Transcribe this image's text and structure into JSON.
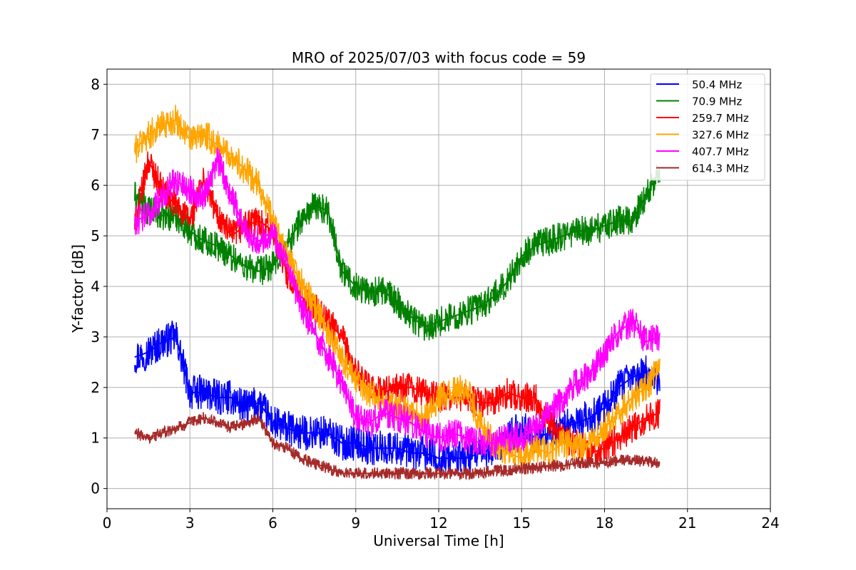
{
  "chart_data": {
    "type": "line",
    "title": "MRO of 2025/07/03 with focus code = 59",
    "xlabel": "Universal Time [h]",
    "ylabel": "Y-factor [dB]",
    "xlim": [
      0,
      24
    ],
    "ylim": [
      -0.4,
      8.3
    ],
    "xticks": [
      0,
      3,
      6,
      9,
      12,
      15,
      18,
      21,
      24
    ],
    "yticks": [
      0,
      1,
      2,
      3,
      4,
      5,
      6,
      7,
      8
    ],
    "grid": true,
    "legend_position": "top-right",
    "series": [
      {
        "name": " 50.4 MHz",
        "color": "#0000ff",
        "x": [
          1.0,
          1.5,
          2.0,
          2.5,
          3.0,
          3.5,
          4.0,
          4.5,
          5.0,
          5.5,
          6.0,
          6.5,
          7.0,
          7.5,
          8.0,
          8.5,
          9.0,
          9.5,
          10.0,
          10.5,
          11.0,
          11.5,
          12.0,
          12.5,
          13.0,
          13.5,
          14.0,
          14.5,
          15.0,
          15.5,
          16.0,
          16.5,
          17.0,
          17.5,
          18.0,
          18.5,
          19.0,
          19.5,
          20.0
        ],
        "y": [
          2.6,
          2.7,
          2.9,
          3.0,
          1.9,
          1.9,
          1.8,
          1.8,
          1.6,
          1.7,
          1.3,
          1.2,
          1.1,
          1.1,
          1.1,
          0.9,
          0.9,
          0.8,
          0.8,
          0.8,
          0.7,
          0.7,
          0.6,
          0.6,
          0.6,
          0.7,
          0.8,
          1.0,
          1.2,
          1.0,
          1.1,
          1.2,
          1.3,
          1.4,
          1.6,
          2.0,
          2.2,
          2.3,
          2.1
        ]
      },
      {
        "name": " 70.9 MHz",
        "color": "#008000",
        "x": [
          1.0,
          1.5,
          2.0,
          2.5,
          3.0,
          3.5,
          4.0,
          4.5,
          5.0,
          5.5,
          6.0,
          6.5,
          7.0,
          7.5,
          8.0,
          8.5,
          9.0,
          9.5,
          10.0,
          10.5,
          11.0,
          11.5,
          12.0,
          12.5,
          13.0,
          13.5,
          14.0,
          14.5,
          15.0,
          15.5,
          16.0,
          16.5,
          17.0,
          17.5,
          18.0,
          18.5,
          19.0,
          19.5,
          20.0
        ],
        "y": [
          5.8,
          5.5,
          5.4,
          5.4,
          5.1,
          4.9,
          4.8,
          4.6,
          4.4,
          4.3,
          4.4,
          4.8,
          5.3,
          5.6,
          5.5,
          4.3,
          4.0,
          3.9,
          3.9,
          3.7,
          3.4,
          3.2,
          3.3,
          3.4,
          3.5,
          3.6,
          3.8,
          4.1,
          4.6,
          4.8,
          4.9,
          5.0,
          5.1,
          5.1,
          5.2,
          5.3,
          5.3,
          5.8,
          6.3
        ]
      },
      {
        "name": "259.7 MHz",
        "color": "#ff0000",
        "x": [
          1.0,
          1.5,
          2.0,
          2.5,
          3.0,
          3.5,
          4.0,
          4.5,
          5.0,
          5.5,
          6.0,
          6.5,
          7.0,
          7.5,
          8.0,
          8.5,
          9.0,
          9.5,
          10.0,
          10.5,
          11.0,
          11.5,
          12.0,
          12.5,
          13.0,
          13.5,
          14.0,
          14.5,
          15.0,
          15.5,
          16.0,
          16.5,
          17.0,
          17.5,
          18.0,
          18.5,
          19.0,
          19.5,
          20.0
        ],
        "y": [
          5.2,
          6.5,
          5.9,
          5.6,
          5.3,
          6.1,
          5.4,
          5.0,
          5.2,
          5.3,
          5.1,
          4.3,
          3.8,
          3.6,
          3.3,
          3.0,
          2.3,
          2.0,
          1.9,
          2.0,
          2.0,
          1.9,
          1.8,
          1.8,
          1.8,
          1.7,
          1.7,
          1.9,
          1.8,
          1.8,
          1.3,
          1.0,
          0.9,
          0.7,
          0.8,
          1.0,
          1.2,
          1.4,
          1.5
        ]
      },
      {
        "name": "327.6 MHz",
        "color": "#ffa500",
        "x": [
          1.0,
          1.5,
          2.0,
          2.5,
          3.0,
          3.5,
          4.0,
          4.5,
          5.0,
          5.5,
          6.0,
          6.5,
          7.0,
          7.5,
          8.0,
          8.5,
          9.0,
          9.5,
          10.0,
          10.5,
          11.0,
          11.5,
          12.0,
          12.5,
          13.0,
          13.5,
          14.0,
          14.5,
          15.0,
          15.5,
          16.0,
          16.5,
          17.0,
          17.5,
          18.0,
          18.5,
          19.0,
          19.5,
          20.0
        ],
        "y": [
          6.7,
          7.0,
          7.2,
          7.3,
          6.9,
          7.0,
          6.8,
          6.6,
          6.3,
          6.0,
          5.3,
          4.6,
          4.1,
          3.6,
          3.1,
          2.6,
          2.1,
          1.9,
          1.7,
          1.6,
          1.5,
          1.4,
          1.8,
          1.9,
          2.0,
          1.3,
          0.9,
          0.7,
          0.6,
          0.8,
          0.7,
          0.9,
          0.8,
          0.9,
          1.2,
          1.5,
          1.8,
          2.0,
          2.4
        ]
      },
      {
        "name": "407.7 MHz",
        "color": "#ff00ff",
        "x": [
          1.0,
          1.5,
          2.0,
          2.5,
          3.0,
          3.5,
          4.0,
          4.5,
          5.0,
          5.5,
          6.0,
          6.5,
          7.0,
          7.5,
          8.0,
          8.5,
          9.0,
          9.5,
          10.0,
          10.5,
          11.0,
          11.5,
          12.0,
          12.5,
          13.0,
          13.5,
          14.0,
          14.5,
          15.0,
          15.5,
          16.0,
          16.5,
          17.0,
          17.5,
          18.0,
          18.5,
          19.0,
          19.5,
          20.0
        ],
        "y": [
          5.3,
          5.4,
          5.8,
          6.1,
          5.9,
          5.8,
          6.5,
          5.8,
          5.1,
          4.9,
          5.1,
          4.4,
          3.6,
          3.1,
          2.6,
          2.1,
          1.4,
          1.3,
          1.5,
          1.4,
          1.3,
          1.1,
          1.0,
          1.1,
          1.0,
          0.9,
          0.9,
          1.0,
          1.0,
          1.2,
          1.5,
          1.8,
          2.1,
          2.3,
          2.7,
          3.1,
          3.3,
          2.9,
          3.0
        ]
      },
      {
        "name": "614.3 MHz",
        "color": "#a52a2a",
        "x": [
          1.0,
          1.5,
          2.0,
          2.5,
          3.0,
          3.5,
          4.0,
          4.5,
          5.0,
          5.5,
          6.0,
          6.5,
          7.0,
          7.5,
          8.0,
          8.5,
          9.0,
          9.5,
          10.0,
          10.5,
          11.0,
          11.5,
          12.0,
          12.5,
          13.0,
          13.5,
          14.0,
          14.5,
          15.0,
          15.5,
          16.0,
          16.5,
          17.0,
          17.5,
          18.0,
          18.5,
          19.0,
          19.5,
          20.0
        ],
        "y": [
          1.1,
          1.0,
          1.1,
          1.2,
          1.3,
          1.4,
          1.3,
          1.2,
          1.3,
          1.4,
          0.9,
          0.8,
          0.6,
          0.5,
          0.4,
          0.3,
          0.3,
          0.3,
          0.3,
          0.3,
          0.3,
          0.3,
          0.3,
          0.3,
          0.3,
          0.3,
          0.35,
          0.35,
          0.4,
          0.4,
          0.45,
          0.45,
          0.5,
          0.5,
          0.5,
          0.55,
          0.55,
          0.55,
          0.5
        ]
      }
    ]
  }
}
